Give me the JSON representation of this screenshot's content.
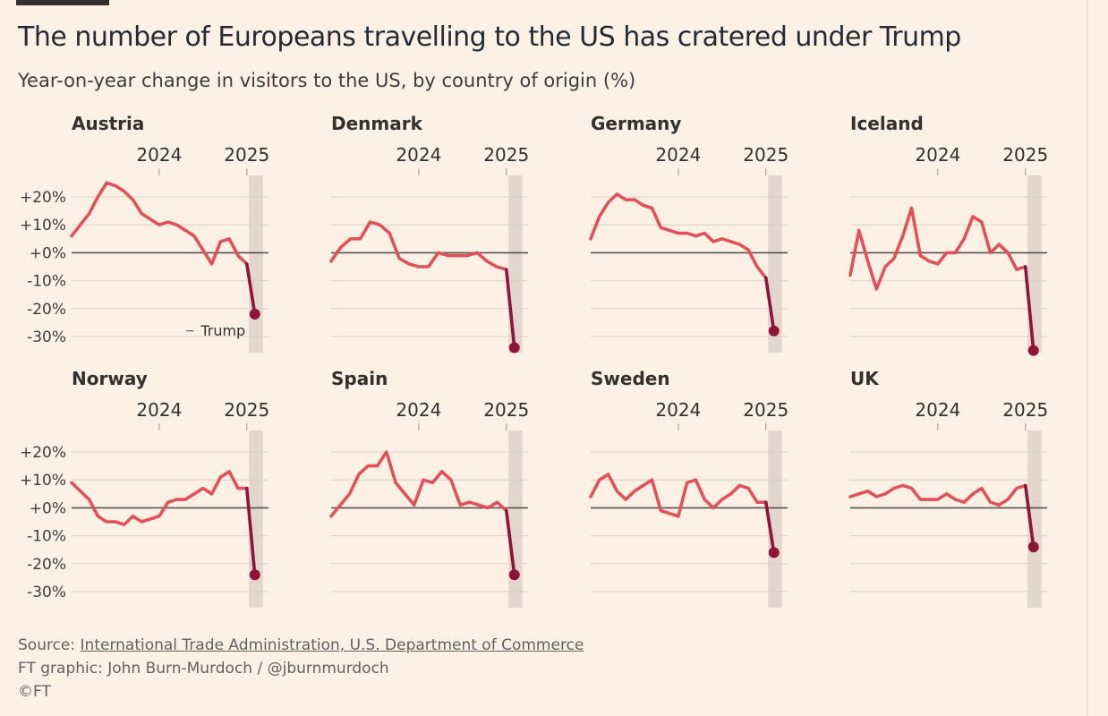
{
  "header": {
    "title": "The number of Europeans travelling to the US has cratered under Trump",
    "subtitle": "Year-on-year change in visitors to the US, by country of origin (%)"
  },
  "footer": {
    "source_prefix": "Source: ",
    "source_link": "International Trade Administration, U.S. Department of Commerce",
    "credit": "FT graphic: John Burn-Murdoch / @jburnmurdoch",
    "copyright": "©FT"
  },
  "colors": {
    "line": "#e0515c",
    "drop": "#8e1537",
    "shade": "#e3d6cc",
    "grid": "#dad0c8",
    "zero": "#555150"
  },
  "chart_data": {
    "type": "line",
    "x_unit": "months since Jan 2023",
    "x_ticks": [
      {
        "label": "2024",
        "x": 12
      },
      {
        "label": "2025",
        "x": 24
      }
    ],
    "y_ticks": [
      {
        "label": "+20%",
        "v": 20
      },
      {
        "label": "+10%",
        "v": 10
      },
      {
        "label": "+0%",
        "v": 0
      },
      {
        "label": "-10%",
        "v": -10
      },
      {
        "label": "-20%",
        "v": -20
      },
      {
        "label": "-30%",
        "v": -30
      }
    ],
    "ylim": [
      -35,
      25
    ],
    "xlim": [
      0,
      25.5
    ],
    "trump_period": [
      24.3,
      26.2
    ],
    "annotation": {
      "panel": "Austria",
      "text": "Trump"
    },
    "panels": [
      {
        "name": "Austria",
        "values": [
          6,
          10,
          14,
          20,
          25,
          24,
          22,
          19,
          14,
          12,
          10,
          11,
          10,
          8,
          6,
          1,
          -4,
          4,
          5,
          -1,
          -4,
          -22
        ]
      },
      {
        "name": "Denmark",
        "values": [
          -3,
          2,
          5,
          5,
          11,
          10,
          7,
          -2,
          -4,
          -5,
          -5,
          0,
          -1,
          -1,
          -1,
          0,
          -3,
          -5,
          -6,
          -34
        ]
      },
      {
        "name": "Germany",
        "values": [
          5,
          13,
          18,
          21,
          19,
          19,
          17,
          16,
          9,
          8,
          7,
          7,
          6,
          7,
          4,
          5,
          4,
          3,
          1,
          -5,
          -9,
          -28
        ]
      },
      {
        "name": "Iceland",
        "values": [
          -8,
          8,
          -3,
          -13,
          -5,
          -2,
          6,
          16,
          -1,
          -3,
          -4,
          0,
          0,
          5,
          13,
          11,
          0,
          3,
          0,
          -6,
          -5,
          -35
        ]
      },
      {
        "name": "Norway",
        "values": [
          9,
          6,
          3,
          -3,
          -5,
          -5,
          -6,
          -3,
          -5,
          -4,
          -3,
          2,
          3,
          3,
          5,
          7,
          5,
          11,
          13,
          7,
          7,
          -24
        ]
      },
      {
        "name": "Spain",
        "values": [
          -3,
          1,
          5,
          12,
          15,
          15,
          20,
          9,
          5,
          1,
          10,
          9,
          13,
          10,
          1,
          2,
          1,
          0,
          2,
          -1,
          -24
        ]
      },
      {
        "name": "Sweden",
        "values": [
          4,
          10,
          12,
          6,
          3,
          6,
          8,
          10,
          -1,
          -2,
          -3,
          9,
          10,
          3,
          0,
          3,
          5,
          8,
          7,
          2,
          2,
          -16
        ]
      },
      {
        "name": "UK",
        "values": [
          4,
          5,
          6,
          4,
          5,
          7,
          8,
          7,
          3,
          3,
          3,
          5,
          3,
          2,
          5,
          7,
          2,
          1,
          3,
          7,
          8,
          -14
        ]
      }
    ]
  }
}
